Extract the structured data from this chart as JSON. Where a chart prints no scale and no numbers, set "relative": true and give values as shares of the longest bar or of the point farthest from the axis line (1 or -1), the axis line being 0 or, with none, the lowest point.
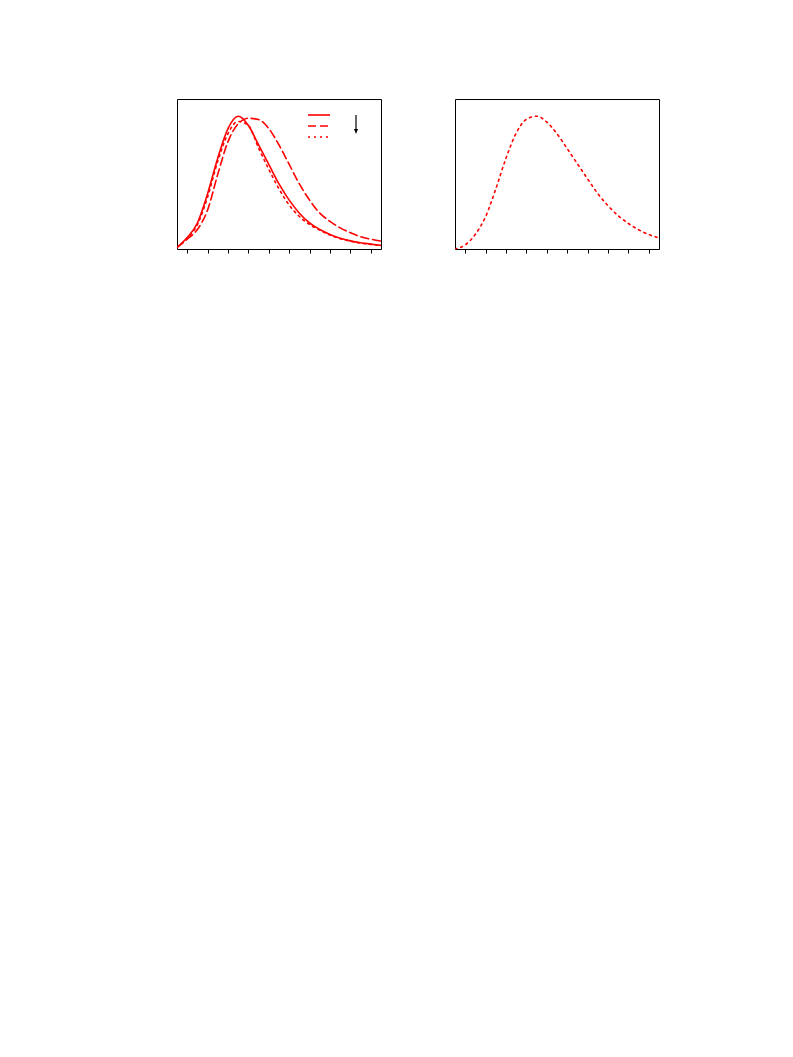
{
  "chart_data": [
    {
      "type": "line",
      "relative": true,
      "categories": [
        null,
        null,
        null,
        null,
        null,
        null,
        null,
        null,
        null,
        null,
        null,
        null,
        null,
        null,
        null,
        null,
        null,
        null,
        null,
        null,
        null
      ],
      "series": [
        {
          "color": "#ff0000",
          "line_style": "solid",
          "values": [
            0.012,
            0.086,
            0.196,
            0.417,
            0.686,
            0.907,
            1.0,
            0.931,
            0.784,
            0.637,
            0.49,
            0.368,
            0.27,
            0.196,
            0.147,
            0.11,
            0.081,
            0.061,
            0.047,
            0.037,
            0.027
          ]
        },
        {
          "color": "#ff0000",
          "line_style": "dashed",
          "values": [
            0.012,
            0.074,
            0.147,
            0.294,
            0.564,
            0.809,
            0.944,
            0.985,
            0.975,
            0.907,
            0.784,
            0.637,
            0.49,
            0.368,
            0.27,
            0.208,
            0.159,
            0.123,
            0.093,
            0.074,
            0.059
          ]
        },
        {
          "color": "#ff0000",
          "line_style": "dotted",
          "values": [
            0.012,
            0.081,
            0.184,
            0.392,
            0.662,
            0.87,
            0.961,
            0.931,
            0.76,
            0.6,
            0.453,
            0.331,
            0.245,
            0.184,
            0.142,
            0.105,
            0.078,
            0.059,
            0.044,
            0.034,
            0.025
          ]
        }
      ]
    },
    {
      "type": "line",
      "relative": true,
      "categories": [
        null,
        null,
        null,
        null,
        null,
        null,
        null,
        null,
        null,
        null,
        null,
        null,
        null,
        null,
        null,
        null,
        null,
        null,
        null,
        null,
        null
      ],
      "series": [
        {
          "color": "#ff0000",
          "line_style": "dotted",
          "values": [
            0,
            0.031,
            0.111,
            0.244,
            0.453,
            0.684,
            0.873,
            0.977,
            1.0,
            0.956,
            0.868,
            0.756,
            0.642,
            0.528,
            0.417,
            0.326,
            0.251,
            0.192,
            0.145,
            0.109,
            0.083
          ]
        }
      ]
    }
  ]
}
